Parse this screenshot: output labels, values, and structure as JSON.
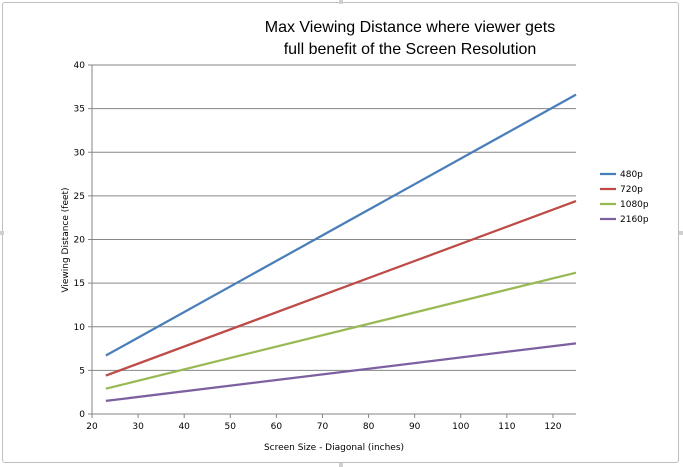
{
  "chart_data": {
    "type": "line",
    "title_line1": "Max Viewing Distance where viewer gets",
    "title_line2": "full benefit of the Screen Resolution",
    "xlabel": "Screen Size - Diagonal  (inches)",
    "ylabel": "Viewing Distance  (feet)",
    "xlim": [
      20,
      125
    ],
    "ylim": [
      0,
      40
    ],
    "xticks": [
      20,
      30,
      40,
      50,
      60,
      70,
      80,
      90,
      100,
      110,
      120
    ],
    "yticks": [
      0,
      5,
      10,
      15,
      20,
      25,
      30,
      35,
      40
    ],
    "grid": "horizontal",
    "legend_position": "right",
    "series": [
      {
        "name": "480p",
        "color": "#4a7ebb",
        "x": [
          23,
          125
        ],
        "y": [
          6.7,
          36.6
        ]
      },
      {
        "name": "720p",
        "color": "#be4b48",
        "x": [
          23,
          125
        ],
        "y": [
          4.4,
          24.4
        ]
      },
      {
        "name": "1080p",
        "color": "#98b954",
        "x": [
          23,
          125
        ],
        "y": [
          2.9,
          16.2
        ]
      },
      {
        "name": "2160p",
        "color": "#7d60a0",
        "x": [
          23,
          125
        ],
        "y": [
          1.5,
          8.1
        ]
      }
    ]
  }
}
